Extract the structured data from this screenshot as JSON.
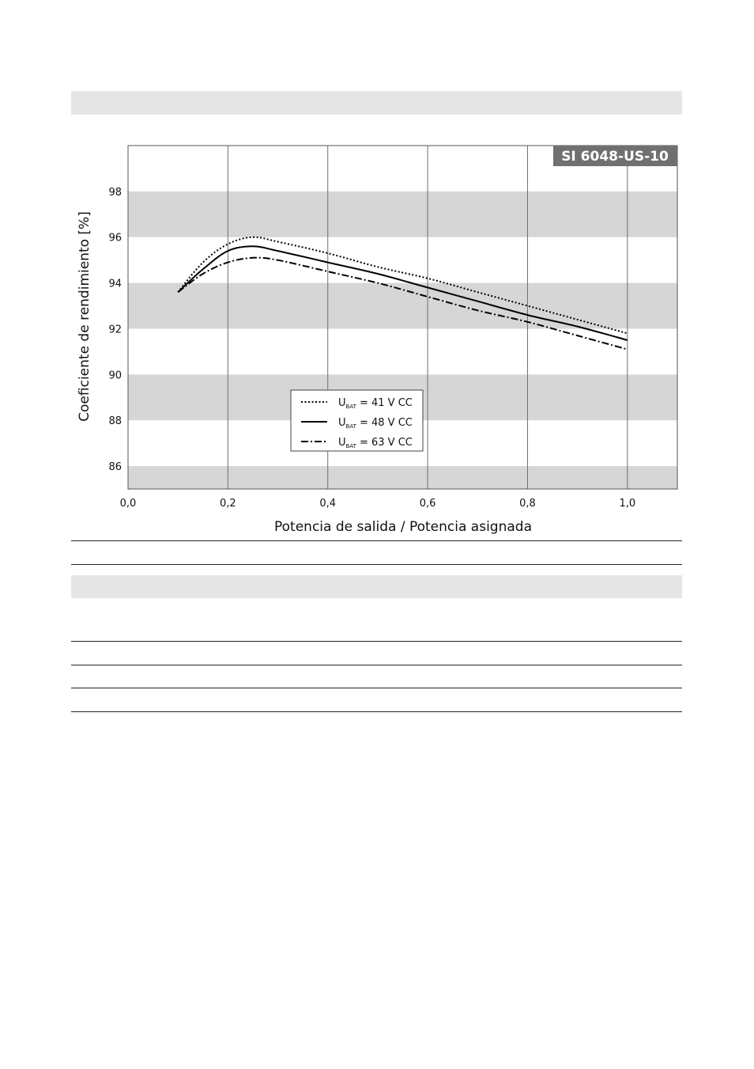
{
  "chart_data": {
    "type": "line",
    "badge": "SI 6048-US-10",
    "xlabel": "Potencia de salida / Potencia asignada",
    "ylabel": "Coeficiente de rendimiento [%]",
    "xlim": [
      0,
      1.1
    ],
    "ylim": [
      85,
      100
    ],
    "xticks": [
      "0,0",
      "0,2",
      "0,4",
      "0,6",
      "0,8",
      "1,0"
    ],
    "yticks": [
      "86",
      "88",
      "90",
      "92",
      "94",
      "96",
      "98"
    ],
    "grid": "vertical lines with alternating horizontal grey bands",
    "legend_position": "bottom-center",
    "series": [
      {
        "name": "U_BAT = 41 V CC",
        "label_main": "U",
        "label_sub": "BAT",
        "label_rest": " = 41 V CC",
        "style": "dotted",
        "x": [
          0.1,
          0.15,
          0.2,
          0.25,
          0.3,
          0.4,
          0.5,
          0.6,
          0.7,
          0.8,
          0.9,
          1.0
        ],
        "y": [
          93.6,
          94.9,
          95.7,
          96.0,
          95.8,
          95.3,
          94.7,
          94.2,
          93.6,
          93.0,
          92.4,
          91.8
        ]
      },
      {
        "name": "U_BAT = 48 V CC",
        "label_main": "U",
        "label_sub": "BAT",
        "label_rest": " = 48 V CC",
        "style": "solid",
        "x": [
          0.1,
          0.15,
          0.2,
          0.25,
          0.3,
          0.4,
          0.5,
          0.6,
          0.7,
          0.8,
          0.9,
          1.0
        ],
        "y": [
          93.6,
          94.6,
          95.4,
          95.6,
          95.4,
          94.9,
          94.4,
          93.8,
          93.2,
          92.6,
          92.1,
          91.5
        ]
      },
      {
        "name": "U_BAT = 63 V CC",
        "label_main": "U",
        "label_sub": "BAT",
        "label_rest": " = 63 V CC",
        "style": "dash-dot",
        "x": [
          0.1,
          0.15,
          0.2,
          0.25,
          0.3,
          0.4,
          0.5,
          0.6,
          0.7,
          0.8,
          0.9,
          1.0
        ],
        "y": [
          93.6,
          94.4,
          94.9,
          95.1,
          95.0,
          94.5,
          94.0,
          93.4,
          92.8,
          92.3,
          91.7,
          91.1
        ]
      }
    ]
  },
  "colors": {
    "band": "#d6d6d6",
    "header_band": "#e6e6e6",
    "badge_bg": "#707070",
    "line": "#000000",
    "grid": "#6e6e6e"
  }
}
